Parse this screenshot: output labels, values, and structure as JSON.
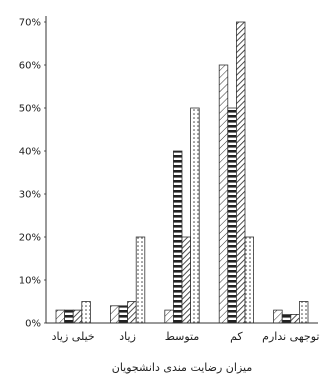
{
  "chart_data": {
    "type": "bar",
    "xlabel": "میزان رضایت مندی دانشجویان",
    "ylabel": "",
    "title": "",
    "ylim": [
      0,
      70
    ],
    "yticks": [
      "0%",
      "10%",
      "20%",
      "30%",
      "40%",
      "50%",
      "60%",
      "70%"
    ],
    "grid": false,
    "legend": "none",
    "categories": [
      "خیلی زیاد",
      "زیاد",
      "متوسط",
      "کم",
      "توجهی ندارم"
    ],
    "series": [
      {
        "pattern": "diagonal-hatch",
        "values": [
          3,
          4,
          3,
          60,
          3
        ]
      },
      {
        "pattern": "horizontal-bars",
        "values": [
          3,
          4,
          40,
          50,
          2
        ]
      },
      {
        "pattern": "diagonal-hatch-dense",
        "values": [
          3,
          5,
          20,
          70,
          2
        ]
      },
      {
        "pattern": "dots",
        "values": [
          5,
          20,
          50,
          20,
          5
        ]
      }
    ]
  }
}
